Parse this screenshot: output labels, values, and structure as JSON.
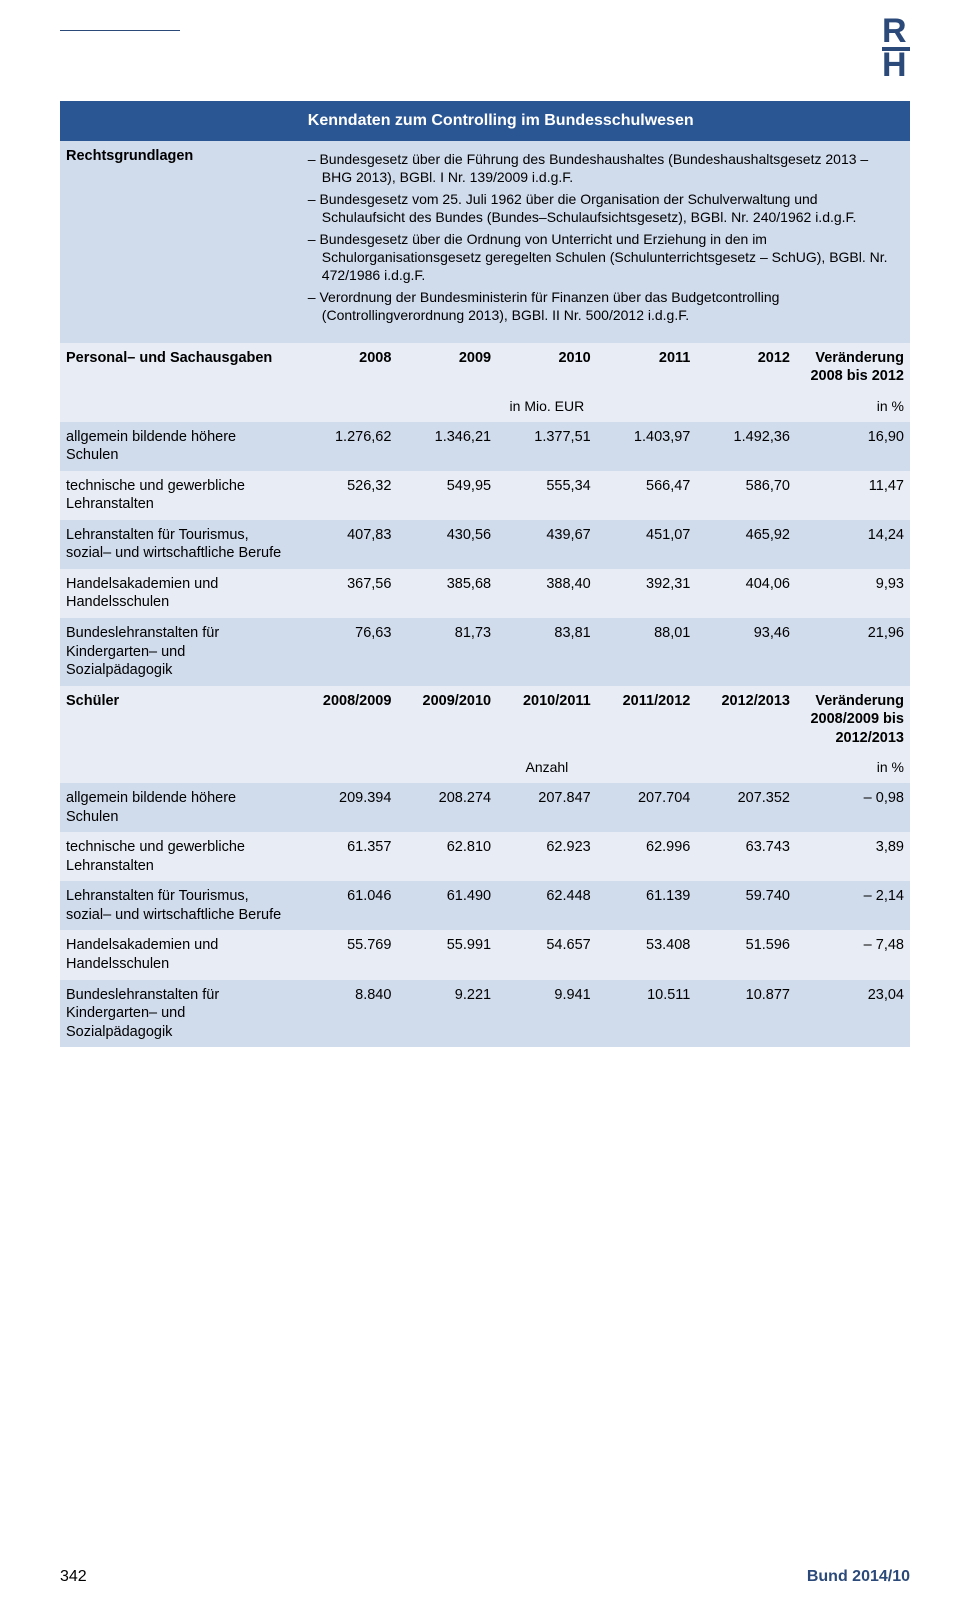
{
  "colors": {
    "header_bg": "#2b5694",
    "header_text": "#ffffff",
    "band_a": "#d0dbec",
    "band_b": "#e7ecf5",
    "rule_color": "#2b4a7a",
    "logo_color": "#2b4a7a",
    "body_text": "#000000"
  },
  "logo": {
    "top": "R",
    "bottom": "H"
  },
  "title": "Kenndaten zum Controlling im Bundesschulwesen",
  "legal": {
    "label": "Rechtsgrundlagen",
    "items": [
      "– Bundesgesetz über die Führung des Bundeshaushaltes (Bundeshaushaltsgesetz 2013 – BHG 2013), BGBl. I Nr. 139/2009 i.d.g.F.",
      "– Bundesgesetz vom 25. Juli 1962 über die Organisation der Schulverwaltung und Schulaufsicht des Bundes (Bundes–Schulaufsichtsgesetz), BGBl. Nr. 240/1962 i.d.g.F.",
      "– Bundesgesetz über die Ordnung von Unterricht und Erziehung in den im Schulorganisationsgesetz geregelten Schulen (Schulunterrichtsgesetz – SchUG), BGBl. Nr. 472/1986 i.d.g.F.",
      "– Verordnung der Bundesministerin für Finanzen über das Budgetcontrolling (Controllingverordnung 2013), BGBl. II Nr. 500/2012 i.d.g.F."
    ]
  },
  "section1": {
    "label": "Personal– und Sachausgaben",
    "year_cols": [
      "2008",
      "2009",
      "2010",
      "2011",
      "2012"
    ],
    "change_col": "Veränderung 2008 bis 2012",
    "unit_left": "in Mio. EUR",
    "unit_right": "in %",
    "rows": [
      {
        "label": "allgemein bildende höhere Schulen",
        "vals": [
          "1.276,62",
          "1.346,21",
          "1.377,51",
          "1.403,97",
          "1.492,36"
        ],
        "chg": "16,90"
      },
      {
        "label": "technische und gewerbliche Lehranstalten",
        "vals": [
          "526,32",
          "549,95",
          "555,34",
          "566,47",
          "586,70"
        ],
        "chg": "11,47"
      },
      {
        "label": "Lehranstalten für Tourismus, sozial– und wirtschaftliche Berufe",
        "vals": [
          "407,83",
          "430,56",
          "439,67",
          "451,07",
          "465,92"
        ],
        "chg": "14,24"
      },
      {
        "label": "Handelsakademien und Handelsschulen",
        "vals": [
          "367,56",
          "385,68",
          "388,40",
          "392,31",
          "404,06"
        ],
        "chg": "9,93"
      },
      {
        "label": "Bundeslehranstalten für Kindergarten– und Sozialpädagogik",
        "vals": [
          "76,63",
          "81,73",
          "83,81",
          "88,01",
          "93,46"
        ],
        "chg": "21,96"
      }
    ]
  },
  "section2": {
    "label": "Schüler",
    "year_cols": [
      "2008/2009",
      "2009/2010",
      "2010/2011",
      "2011/2012",
      "2012/2013"
    ],
    "change_col": "Veränderung 2008/2009 bis 2012/2013",
    "unit_left": "Anzahl",
    "unit_right": "in %",
    "rows": [
      {
        "label": "allgemein bildende höhere Schulen",
        "vals": [
          "209.394",
          "208.274",
          "207.847",
          "207.704",
          "207.352"
        ],
        "chg": "– 0,98"
      },
      {
        "label": "technische und gewerbliche Lehranstalten",
        "vals": [
          "61.357",
          "62.810",
          "62.923",
          "62.996",
          "63.743"
        ],
        "chg": "3,89"
      },
      {
        "label": "Lehranstalten für Tourismus, sozial– und wirtschaftliche Berufe",
        "vals": [
          "61.046",
          "61.490",
          "62.448",
          "61.139",
          "59.740"
        ],
        "chg": "– 2,14"
      },
      {
        "label": "Handelsakademien und Handelsschulen",
        "vals": [
          "55.769",
          "55.991",
          "54.657",
          "53.408",
          "51.596"
        ],
        "chg": "– 7,48"
      },
      {
        "label": "Bundeslehranstalten für Kindergarten– und Sozialpädagogik",
        "vals": [
          "8.840",
          "9.221",
          "9.941",
          "10.511",
          "10.877"
        ],
        "chg": "23,04"
      }
    ]
  },
  "footer": {
    "page": "342",
    "pub": "Bund 2014/10"
  }
}
